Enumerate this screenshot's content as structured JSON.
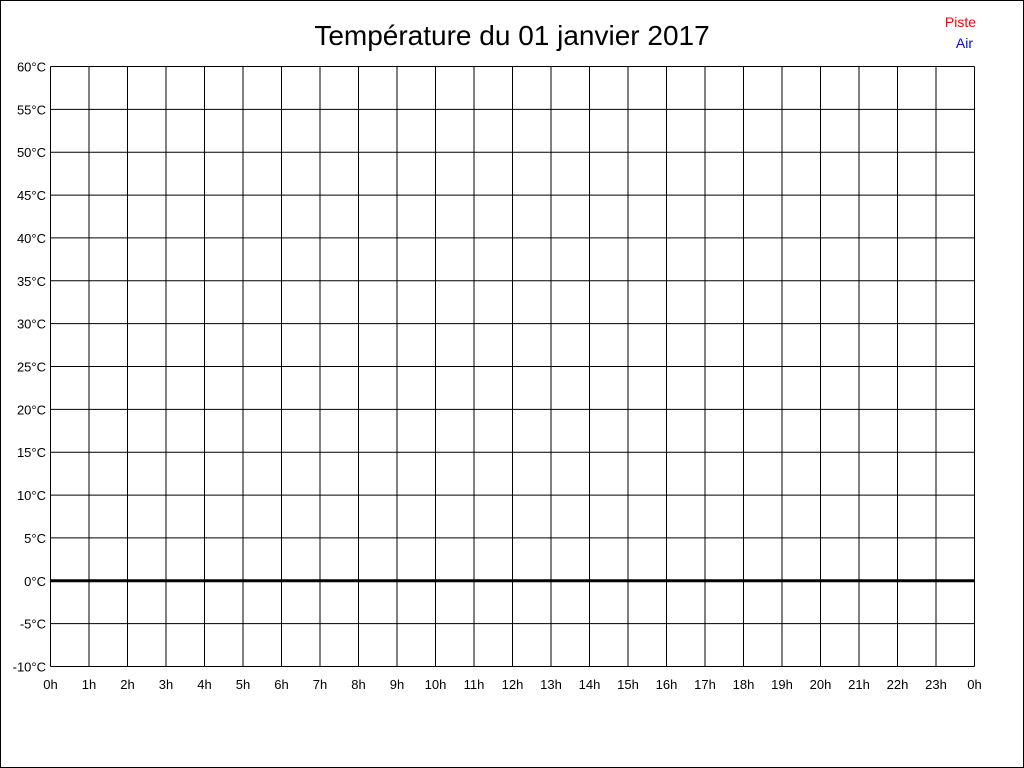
{
  "chart_data": {
    "type": "line",
    "title": "Température du 01 janvier 2017",
    "xlabel": "",
    "ylabel": "",
    "x_ticks": [
      "0h",
      "1h",
      "2h",
      "3h",
      "4h",
      "5h",
      "6h",
      "7h",
      "8h",
      "9h",
      "10h",
      "11h",
      "12h",
      "13h",
      "14h",
      "15h",
      "16h",
      "17h",
      "18h",
      "19h",
      "20h",
      "21h",
      "22h",
      "23h",
      "0h"
    ],
    "y_ticks": [
      "60°C",
      "55°C",
      "50°C",
      "45°C",
      "40°C",
      "35°C",
      "30°C",
      "25°C",
      "20°C",
      "15°C",
      "10°C",
      "5°C",
      "0°C",
      "-5°C",
      "-10°C"
    ],
    "xlim": [
      0,
      24
    ],
    "ylim": [
      -10,
      60
    ],
    "grid": true,
    "zero_line": true,
    "legend_position": "top-right",
    "series": [
      {
        "name": "Piste",
        "color": "#ff0000",
        "values": []
      },
      {
        "name": "Air",
        "color": "#0000ff",
        "values": []
      }
    ]
  }
}
